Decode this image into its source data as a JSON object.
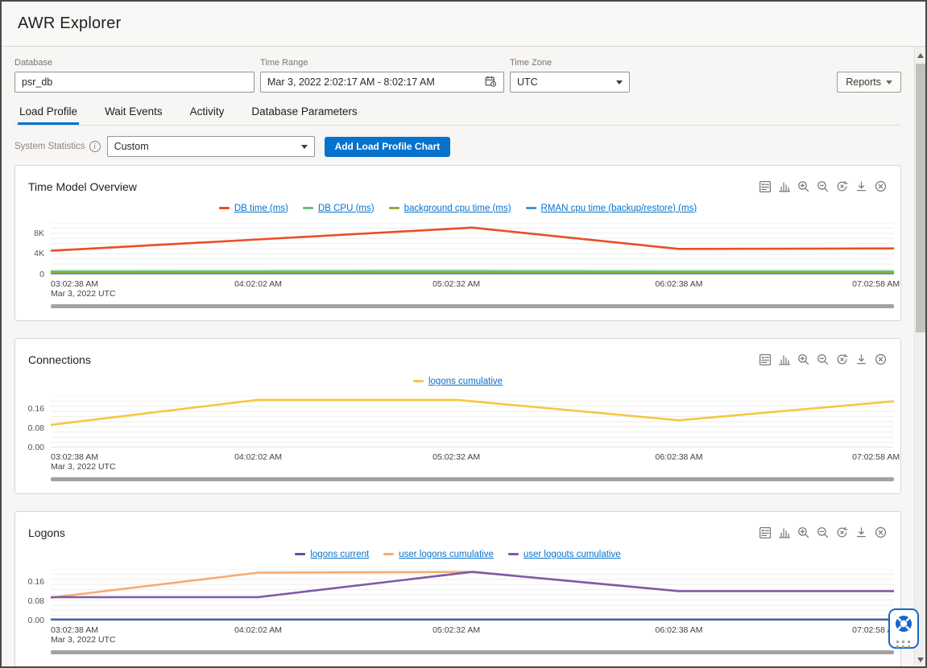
{
  "header": {
    "title": "AWR Explorer"
  },
  "filters": {
    "database": {
      "label": "Database",
      "value": "psr_db"
    },
    "time_range": {
      "label": "Time Range",
      "value": "Mar 3, 2022 2:02:17 AM - 8:02:17 AM"
    },
    "time_zone": {
      "label": "Time Zone",
      "value": "UTC"
    },
    "reports_button": "Reports"
  },
  "tabs": [
    {
      "label": "Load Profile",
      "active": true
    },
    {
      "label": "Wait Events",
      "active": false
    },
    {
      "label": "Activity",
      "active": false
    },
    {
      "label": "Database Parameters",
      "active": false
    }
  ],
  "controls": {
    "system_statistics_label": "System Statistics",
    "statistics_select_value": "Custom",
    "add_chart_button": "Add Load Profile Chart"
  },
  "accent_color": "#0572ce",
  "toolbar_icons": [
    "view-data-icon",
    "bar-chart-icon",
    "zoom-in-icon",
    "zoom-out-icon",
    "reset-zoom-icon",
    "download-icon",
    "close-icon"
  ],
  "floating_widget": {
    "icons": [
      "life-ring-icon",
      "drag-dots-icon"
    ]
  },
  "chart_data": [
    {
      "type": "line",
      "title": "Time Model Overview",
      "ylim": [
        0,
        10000
      ],
      "y_ticks": [
        {
          "label": "8K",
          "value": 8000
        },
        {
          "label": "4K",
          "value": 4000
        },
        {
          "label": "0",
          "value": 0
        }
      ],
      "x_tick_labels": [
        "03:02:38 AM",
        "04:02:02 AM",
        "05:02:32 AM",
        "06:02:38 AM",
        "07:02:58 AM"
      ],
      "x_tick_pos": [
        0,
        0.246,
        0.481,
        0.745,
        1
      ],
      "x_axis_sub_label": "Mar 3, 2022 UTC",
      "grid": true,
      "legend_position": "top",
      "series": [
        {
          "name": "DB time (ms)",
          "color": "#eb4e27",
          "x": [
            0,
            0.246,
            0.5,
            0.745,
            1
          ],
          "values": [
            4600,
            6800,
            9100,
            4950,
            5050
          ]
        },
        {
          "name": "DB CPU (ms)",
          "color": "#68c182",
          "x": [
            0,
            0.246,
            0.5,
            0.745,
            1
          ],
          "values": [
            600,
            620,
            650,
            600,
            600
          ]
        },
        {
          "name": "background cpu time (ms)",
          "color": "#99ad32",
          "x": [
            0,
            0.246,
            0.5,
            0.745,
            1
          ],
          "values": [
            340,
            340,
            350,
            340,
            340
          ]
        },
        {
          "name": "RMAN cpu time (backup/restore) (ms)",
          "color": "#4596d1",
          "x": [
            0,
            0.246,
            0.5,
            0.745,
            1
          ],
          "values": [
            60,
            60,
            60,
            60,
            60
          ]
        }
      ]
    },
    {
      "type": "line",
      "title": "Connections",
      "ylim": [
        0,
        0.212
      ],
      "y_ticks": [
        {
          "label": "0.16",
          "value": 0.16
        },
        {
          "label": "0.08",
          "value": 0.08
        },
        {
          "label": "0.00",
          "value": 0
        }
      ],
      "x_tick_labels": [
        "03:02:38 AM",
        "04:02:02 AM",
        "05:02:32 AM",
        "06:02:38 AM",
        "07:02:58 AM"
      ],
      "x_tick_pos": [
        0,
        0.246,
        0.481,
        0.745,
        1
      ],
      "x_axis_sub_label": "Mar 3, 2022 UTC",
      "grid": true,
      "legend_position": "top",
      "series": [
        {
          "name": "logons cumulative",
          "color": "#f5c842",
          "x": [
            0,
            0.246,
            0.481,
            0.745,
            1
          ],
          "values": [
            0.093,
            0.196,
            0.196,
            0.112,
            0.19
          ]
        }
      ]
    },
    {
      "type": "line",
      "title": "Logons",
      "ylim": [
        0,
        0.212
      ],
      "y_ticks": [
        {
          "label": "0.16",
          "value": 0.16
        },
        {
          "label": "0.08",
          "value": 0.08
        },
        {
          "label": "0.00",
          "value": 0
        }
      ],
      "x_tick_labels": [
        "03:02:38 AM",
        "04:02:02 AM",
        "05:02:32 AM",
        "06:02:38 AM",
        "07:02:58 AM"
      ],
      "x_tick_pos": [
        0,
        0.246,
        0.481,
        0.745,
        1
      ],
      "x_axis_sub_label": "Mar 3, 2022 UTC",
      "grid": true,
      "legend_position": "top",
      "series": [
        {
          "name": "logons current",
          "color": "#4f5ba6",
          "x": [
            0,
            0.246,
            0.5,
            0.745,
            1
          ],
          "values": [
            0.004,
            0.004,
            0.004,
            0.004,
            0.004
          ]
        },
        {
          "name": "user logons cumulative",
          "color": "#f6ab72",
          "x": [
            0,
            0.246,
            0.5,
            0.745,
            1
          ],
          "values": [
            0.094,
            0.197,
            0.2,
            0.121,
            0.121
          ]
        },
        {
          "name": "user logouts cumulative",
          "color": "#7c5ba6",
          "x": [
            0,
            0.246,
            0.5,
            0.745,
            1
          ],
          "values": [
            0.096,
            0.096,
            0.2,
            0.121,
            0.121
          ]
        }
      ]
    }
  ]
}
